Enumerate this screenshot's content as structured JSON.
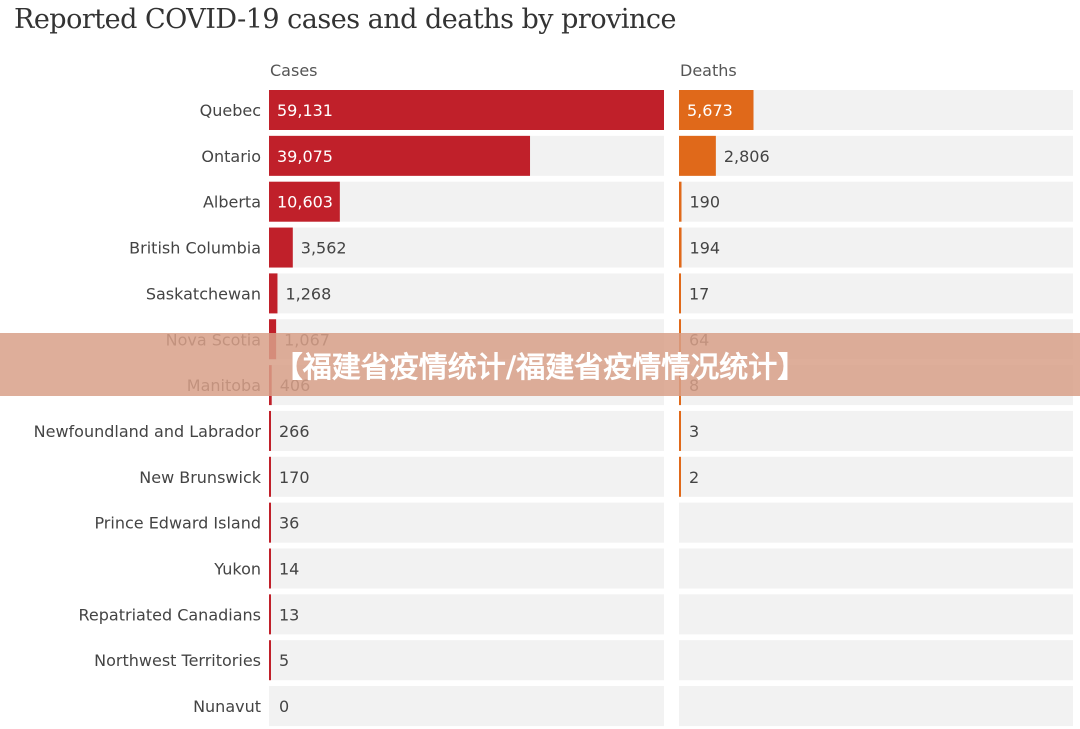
{
  "chart_data": {
    "type": "bar",
    "title": "Reported COVID-19 cases and deaths by province",
    "categories": [
      "Quebec",
      "Ontario",
      "Alberta",
      "British Columbia",
      "Saskatchewan",
      "Nova Scotia",
      "Manitoba",
      "Newfoundland and Labrador",
      "New Brunswick",
      "Prince Edward Island",
      "Yukon",
      "Repatriated Canadians",
      "Northwest Territories",
      "Nunavut"
    ],
    "series": [
      {
        "name": "Cases",
        "color": "#c0202a",
        "display": [
          "59,131",
          "39,075",
          "10,603",
          "3,562",
          "1,268",
          "1,067",
          "406",
          "266",
          "170",
          "36",
          "14",
          "13",
          "5",
          "0"
        ],
        "values": [
          59131,
          39075,
          10603,
          3562,
          1268,
          1067,
          406,
          266,
          170,
          36,
          14,
          13,
          5,
          0
        ],
        "xlim": [
          0,
          59131
        ]
      },
      {
        "name": "Deaths",
        "color": "#e0691a",
        "display": [
          "5,673",
          "2,806",
          "190",
          "194",
          "17",
          "64",
          "8",
          "3",
          "2",
          null,
          null,
          null,
          null,
          null
        ],
        "values": [
          5673,
          2806,
          190,
          194,
          17,
          64,
          8,
          3,
          2,
          null,
          null,
          null,
          null,
          null
        ],
        "xlim": [
          0,
          30000
        ]
      }
    ]
  },
  "banner": {
    "text": "【福建省疫情统计/福建省疫情情况统计】"
  }
}
